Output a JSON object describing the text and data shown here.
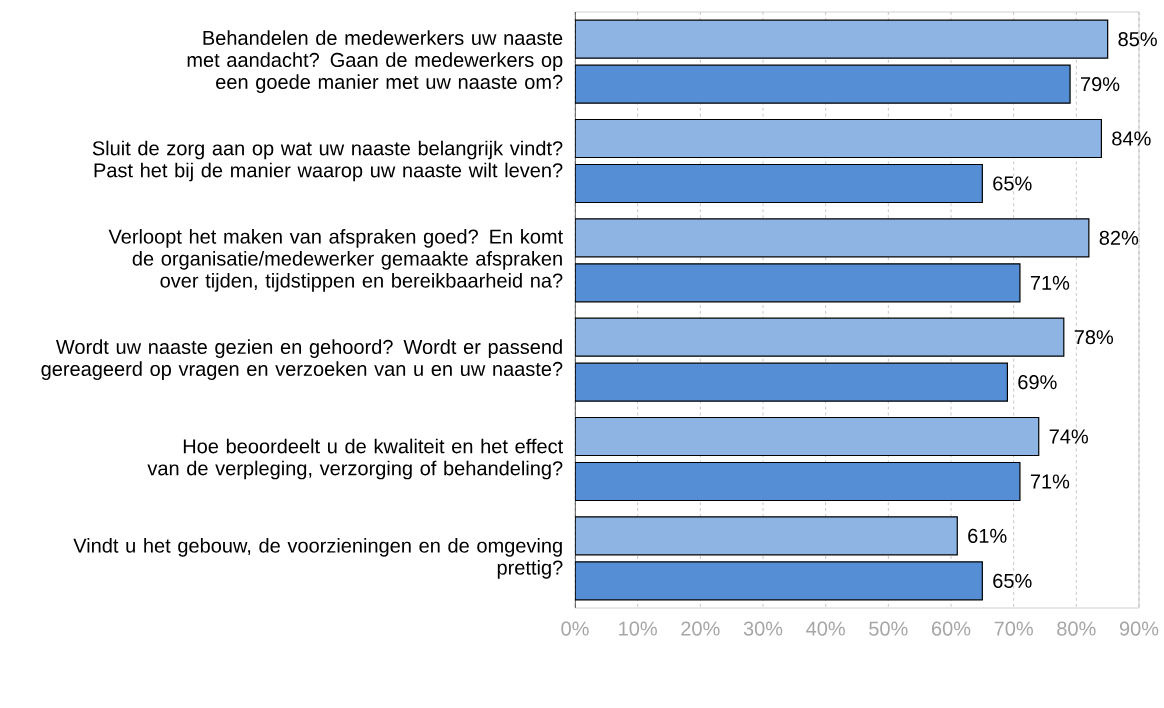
{
  "chart_data": {
    "type": "bar",
    "orientation": "horizontal",
    "categories": [
      "Behandelen de medewerkers uw naaste met aandacht? Gaan de medewerkers op een goede manier met uw naaste om?",
      "Sluit de zorg aan op wat uw naaste belangrijk vindt? Past het bij de manier waarop uw naaste wilt leven?",
      "Verloopt het maken van afspraken goed? En komt de organisatie/medewerker gemaakte afspraken over tijden, tijdstippen en bereikbaarheid na?",
      "Wordt uw naaste gezien en gehoord? Wordt er passend gereageerd op vragen en verzoeken van u en uw naaste?",
      "Hoe beoordeelt u de kwaliteit en het effect van de verpleging, verzorging of behandeling?",
      "Vindt u het gebouw, de voorzieningen en de omgeving prettig?"
    ],
    "series": [
      {
        "color": "#8eb4e3",
        "values": [
          85,
          84,
          82,
          78,
          74,
          61
        ],
        "value_labels": [
          "85%",
          "84%",
          "82%",
          "78%",
          "74%",
          "61%"
        ]
      },
      {
        "color": "#558ed5",
        "values": [
          79,
          65,
          71,
          69,
          71,
          65
        ],
        "value_labels": [
          "79%",
          "65%",
          "71%",
          "69%",
          "71%",
          "65%"
        ]
      }
    ],
    "xlim": [
      0,
      90
    ],
    "xticks": [
      {
        "value": 0,
        "label": "0%"
      },
      {
        "value": 10,
        "label": "10%"
      },
      {
        "value": 20,
        "label": "20%"
      },
      {
        "value": 30,
        "label": "30%"
      },
      {
        "value": 40,
        "label": "40%"
      },
      {
        "value": 50,
        "label": "50%"
      },
      {
        "value": 60,
        "label": "60%"
      },
      {
        "value": 70,
        "label": "70%"
      },
      {
        "value": 80,
        "label": "80%"
      },
      {
        "value": 90,
        "label": "90%"
      }
    ],
    "grid": "x"
  }
}
